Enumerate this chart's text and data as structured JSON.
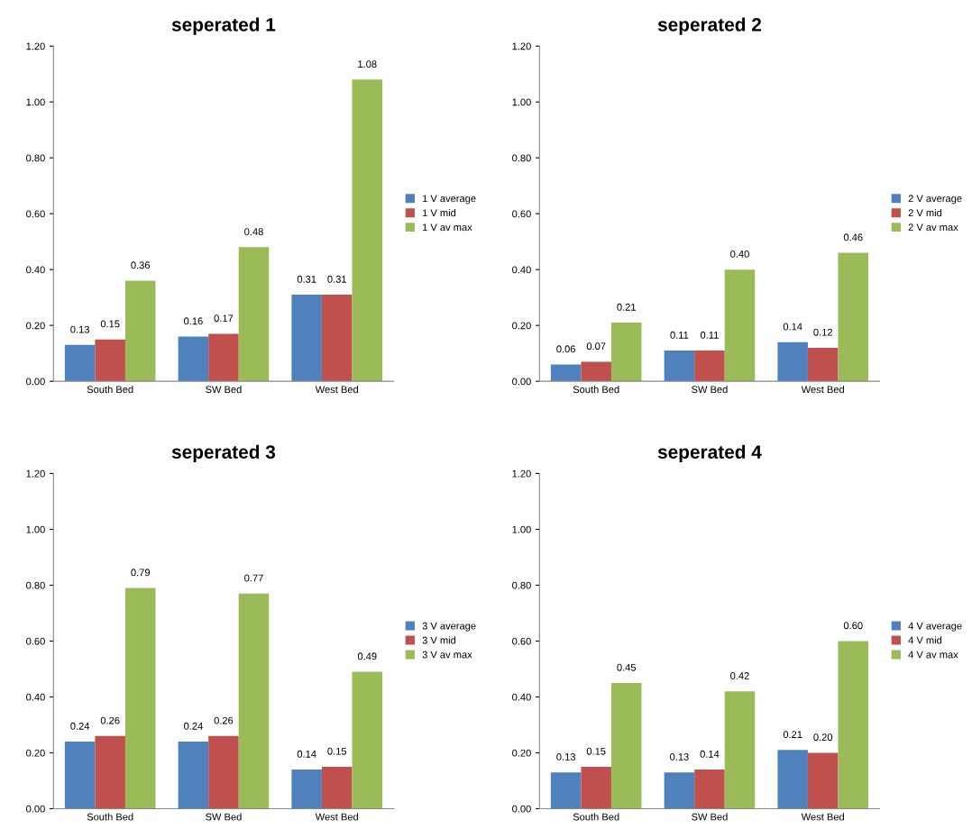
{
  "chart_data": [
    {
      "type": "bar",
      "title": "seperated 1",
      "categories": [
        "South Bed",
        "SW Bed",
        "West Bed"
      ],
      "legend": "right",
      "ylim": [
        0,
        1.2
      ],
      "yticks": [
        {
          "value": 0,
          "label": "0.00"
        },
        {
          "value": 0.2,
          "label": "0.20"
        },
        {
          "value": 0.4,
          "label": "0.40"
        },
        {
          "value": 0.6,
          "label": "0.60"
        },
        {
          "value": 0.8,
          "label": "0.80"
        },
        {
          "value": 1.0,
          "label": "1.00"
        },
        {
          "value": 1.2,
          "label": "1.20"
        }
      ],
      "series": [
        {
          "name": "1 V average",
          "color": "#4f81bd",
          "values": [
            0.13,
            0.16,
            0.31
          ],
          "value_labels": [
            "0.13",
            "0.16",
            "0.31"
          ]
        },
        {
          "name": "1 V mid",
          "color": "#c0504d",
          "values": [
            0.15,
            0.17,
            0.31
          ],
          "value_labels": [
            "0.15",
            "0.17",
            "0.31"
          ]
        },
        {
          "name": "1 V av max",
          "color": "#9bbb59",
          "values": [
            0.36,
            0.48,
            1.08
          ],
          "value_labels": [
            "0.36",
            "0.48",
            "1.08"
          ]
        }
      ]
    },
    {
      "type": "bar",
      "title": "seperated 2",
      "categories": [
        "South Bed",
        "SW Bed",
        "West Bed"
      ],
      "legend": "right",
      "ylim": [
        0,
        1.2
      ],
      "yticks": [
        {
          "value": 0,
          "label": "0.00"
        },
        {
          "value": 0.2,
          "label": "0.20"
        },
        {
          "value": 0.4,
          "label": "0.40"
        },
        {
          "value": 0.6,
          "label": "0.60"
        },
        {
          "value": 0.8,
          "label": "0.80"
        },
        {
          "value": 1.0,
          "label": "1.00"
        },
        {
          "value": 1.2,
          "label": "1.20"
        }
      ],
      "series": [
        {
          "name": "2 V average",
          "color": "#4f81bd",
          "values": [
            0.06,
            0.11,
            0.14
          ],
          "value_labels": [
            "0.06",
            "0.11",
            "0.14"
          ]
        },
        {
          "name": "2 V mid",
          "color": "#c0504d",
          "values": [
            0.07,
            0.11,
            0.12
          ],
          "value_labels": [
            "0.07",
            "0.11",
            "0.12"
          ]
        },
        {
          "name": "2 V av max",
          "color": "#9bbb59",
          "values": [
            0.21,
            0.4,
            0.46
          ],
          "value_labels": [
            "0.21",
            "0.40",
            "0.46"
          ]
        }
      ]
    },
    {
      "type": "bar",
      "title": "seperated 3",
      "categories": [
        "South Bed",
        "SW Bed",
        "West Bed"
      ],
      "legend": "right",
      "ylim": [
        0,
        1.2
      ],
      "yticks": [
        {
          "value": 0,
          "label": "0.00"
        },
        {
          "value": 0.2,
          "label": "0.20"
        },
        {
          "value": 0.4,
          "label": "0.40"
        },
        {
          "value": 0.6,
          "label": "0.60"
        },
        {
          "value": 0.8,
          "label": "0.80"
        },
        {
          "value": 1.0,
          "label": "1.00"
        },
        {
          "value": 1.2,
          "label": "1.20"
        }
      ],
      "series": [
        {
          "name": "3 V average",
          "color": "#4f81bd",
          "values": [
            0.24,
            0.24,
            0.14
          ],
          "value_labels": [
            "0.24",
            "0.24",
            "0.14"
          ]
        },
        {
          "name": "3 V mid",
          "color": "#c0504d",
          "values": [
            0.26,
            0.26,
            0.15
          ],
          "value_labels": [
            "0.26",
            "0.26",
            "0.15"
          ]
        },
        {
          "name": "3 V av max",
          "color": "#9bbb59",
          "values": [
            0.79,
            0.77,
            0.49
          ],
          "value_labels": [
            "0.79",
            "0.77",
            "0.49"
          ]
        }
      ]
    },
    {
      "type": "bar",
      "title": "seperated 4",
      "categories": [
        "South Bed",
        "SW Bed",
        "West Bed"
      ],
      "legend": "right",
      "ylim": [
        0,
        1.2
      ],
      "yticks": [
        {
          "value": 0,
          "label": "0.00"
        },
        {
          "value": 0.2,
          "label": "0.20"
        },
        {
          "value": 0.4,
          "label": "0.40"
        },
        {
          "value": 0.6,
          "label": "0.60"
        },
        {
          "value": 0.8,
          "label": "0.80"
        },
        {
          "value": 1.0,
          "label": "1.00"
        },
        {
          "value": 1.2,
          "label": "1.20"
        }
      ],
      "series": [
        {
          "name": "4 V average",
          "color": "#4f81bd",
          "values": [
            0.13,
            0.13,
            0.21
          ],
          "value_labels": [
            "0.13",
            "0.13",
            "0.21"
          ]
        },
        {
          "name": "4 V mid",
          "color": "#c0504d",
          "values": [
            0.15,
            0.14,
            0.2
          ],
          "value_labels": [
            "0.15",
            "0.14",
            "0.20"
          ]
        },
        {
          "name": "4 V av max",
          "color": "#9bbb59",
          "values": [
            0.45,
            0.42,
            0.6
          ],
          "value_labels": [
            "0.45",
            "0.42",
            "0.60"
          ]
        }
      ]
    }
  ]
}
